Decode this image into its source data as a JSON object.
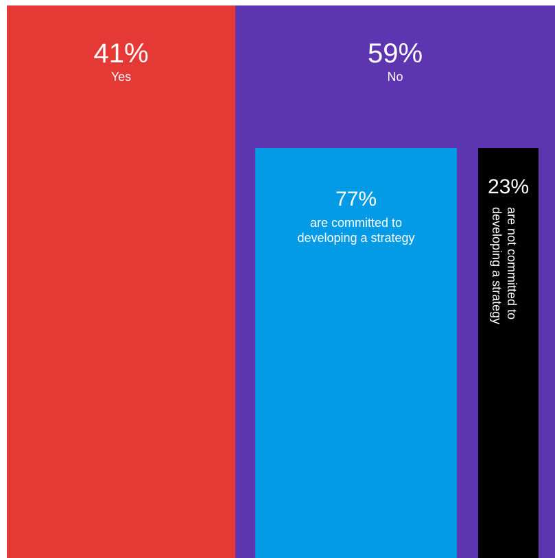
{
  "chart_data": {
    "type": "bar",
    "top_level": [
      {
        "value": 41,
        "display": "41%",
        "label": "Yes",
        "color": "#e53935"
      },
      {
        "value": 59,
        "display": "59%",
        "label": "No",
        "color": "#5e35b1"
      }
    ],
    "breakdown_of": "No",
    "sub_level": [
      {
        "value": 77,
        "display": "77%",
        "label": "are committed to\ndeveloping  a strategy",
        "color": "#039be5"
      },
      {
        "value": 23,
        "display": "23%",
        "label": "are not committed to\ndeveloping  a strategy",
        "color": "#000000"
      }
    ]
  }
}
